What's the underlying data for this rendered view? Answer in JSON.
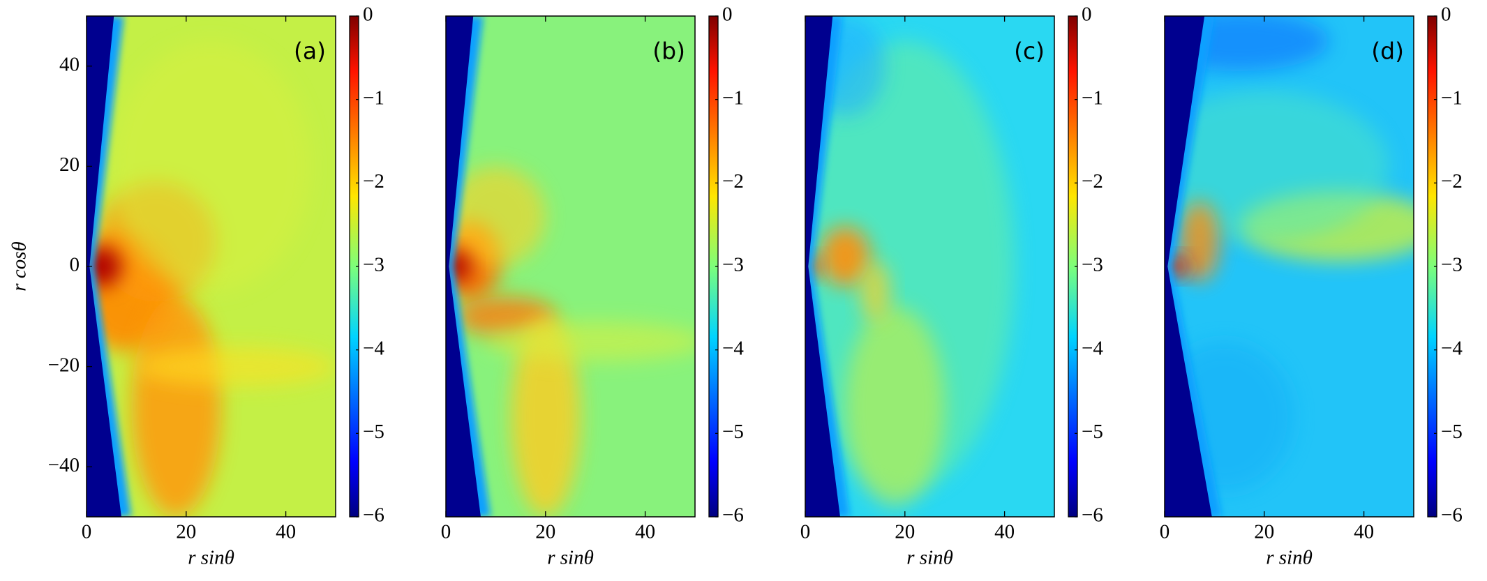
{
  "chart_data": [
    {
      "type": "heatmap",
      "panel_label": "(a)",
      "colormap": "jet",
      "xlabel": "r sinθ",
      "ylabel": "r cosθ",
      "xlim": [
        0,
        50
      ],
      "ylim": [
        -50,
        50
      ],
      "xticks": [
        0,
        20,
        40
      ],
      "yticks": [
        {
          "value": -40,
          "label": "−40"
        },
        {
          "value": -20,
          "label": "−20"
        },
        0,
        20,
        40
      ],
      "clim": [
        -6,
        0
      ],
      "cticks": [
        {
          "value": -6,
          "label": "−6"
        },
        {
          "value": -5,
          "label": "−5"
        },
        {
          "value": -4,
          "label": "−4"
        },
        {
          "value": -3,
          "label": "−3"
        },
        {
          "value": -2,
          "label": "−2"
        },
        {
          "value": -1,
          "label": "−1"
        },
        0
      ]
    },
    {
      "type": "heatmap",
      "panel_label": "(b)",
      "colormap": "jet",
      "xlabel": "r sinθ",
      "xlim": [
        0,
        50
      ],
      "ylim": [
        -50,
        50
      ],
      "xticks": [
        0,
        20,
        40
      ],
      "clim": [
        -6,
        0
      ],
      "cticks": [
        {
          "value": -6,
          "label": "−6"
        },
        {
          "value": -5,
          "label": "−5"
        },
        {
          "value": -4,
          "label": "−4"
        },
        {
          "value": -3,
          "label": "−3"
        },
        {
          "value": -2,
          "label": "−2"
        },
        {
          "value": -1,
          "label": "−1"
        },
        0
      ]
    },
    {
      "type": "heatmap",
      "panel_label": "(c)",
      "colormap": "jet",
      "xlabel": "r sinθ",
      "xlim": [
        0,
        50
      ],
      "ylim": [
        -50,
        50
      ],
      "xticks": [
        0,
        20,
        40
      ],
      "clim": [
        -6,
        0
      ],
      "cticks": [
        {
          "value": -6,
          "label": "−6"
        },
        {
          "value": -5,
          "label": "−5"
        },
        {
          "value": -4,
          "label": "−4"
        },
        {
          "value": -3,
          "label": "−3"
        },
        {
          "value": -2,
          "label": "−2"
        },
        {
          "value": -1,
          "label": "−1"
        },
        0
      ]
    },
    {
      "type": "heatmap",
      "panel_label": "(d)",
      "colormap": "jet",
      "xlabel": "r sinθ",
      "xlim": [
        0,
        50
      ],
      "ylim": [
        -50,
        50
      ],
      "xticks": [
        0,
        20,
        40
      ],
      "clim": [
        -6,
        0
      ],
      "cticks": [
        {
          "value": -6,
          "label": "−6"
        },
        {
          "value": -5,
          "label": "−5"
        },
        {
          "value": -4,
          "label": "−4"
        },
        {
          "value": -3,
          "label": "−3"
        },
        {
          "value": -2,
          "label": "−2"
        },
        {
          "value": -1,
          "label": "−1"
        },
        0
      ]
    }
  ]
}
